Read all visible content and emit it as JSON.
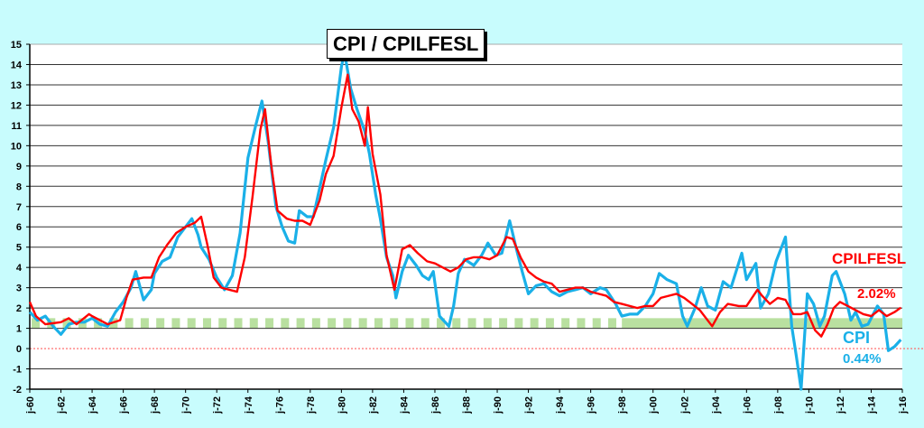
{
  "chart_data": {
    "type": "line",
    "title": "CPI / CPILFESL",
    "xlabel": "",
    "ylabel": "",
    "xlim": [
      1960,
      2016
    ],
    "ylim": [
      -2,
      15
    ],
    "yticks": [
      -2,
      -1,
      0,
      1,
      2,
      3,
      4,
      5,
      6,
      7,
      8,
      9,
      10,
      11,
      12,
      13,
      14,
      15
    ],
    "xtick_labels": [
      "j-60",
      "j-62",
      "j-64",
      "j-66",
      "j-68",
      "j-70",
      "j-72",
      "j-74",
      "j-76",
      "j-78",
      "j-80",
      "j-82",
      "j-84",
      "j-86",
      "j-88",
      "j-90",
      "j-92",
      "j-94",
      "j-96",
      "j-98",
      "j-00",
      "j-02",
      "j-04",
      "j-06",
      "j-08",
      "j-10",
      "j-12",
      "j-14",
      "j-16"
    ],
    "xtick_years": [
      1960,
      1962,
      1964,
      1966,
      1968,
      1970,
      1972,
      1974,
      1976,
      1978,
      1980,
      1982,
      1984,
      1986,
      1988,
      1990,
      1992,
      1994,
      1996,
      1998,
      2000,
      2002,
      2004,
      2006,
      2008,
      2010,
      2012,
      2014,
      2016
    ],
    "grid": true,
    "reference_band": {
      "range": [
        1,
        1.5
      ],
      "color": "#b9e0a0",
      "dashed_until": 1998
    },
    "zero_line_color": "#ff6060",
    "series": [
      {
        "name": "CPI",
        "color": "#1ab0e8",
        "last_value_label": "0.44%",
        "x": [
          1960,
          1960.5,
          1961,
          1961.5,
          1962,
          1962.5,
          1963,
          1963.5,
          1964,
          1964.5,
          1965,
          1965.5,
          1966,
          1966.5,
          1966.8,
          1967.3,
          1967.8,
          1968,
          1968.5,
          1969,
          1969.5,
          1970,
          1970.4,
          1970.8,
          1971,
          1971.5,
          1972,
          1972.5,
          1973,
          1973.5,
          1974,
          1974.5,
          1974.9,
          1975.3,
          1975.8,
          1976.2,
          1976.6,
          1977,
          1977.3,
          1977.8,
          1978.2,
          1978.6,
          1979,
          1979.5,
          1980,
          1980.2,
          1980.6,
          1981,
          1981.5,
          1981.8,
          1982.2,
          1982.5,
          1982.9,
          1983.3,
          1983.5,
          1983.9,
          1984.3,
          1984.8,
          1985.2,
          1985.6,
          1985.9,
          1986.3,
          1986.9,
          1987.2,
          1987.5,
          1987.9,
          1988.5,
          1989,
          1989.4,
          1989.9,
          1990.3,
          1990.8,
          1991.2,
          1991.6,
          1992,
          1992.5,
          1993,
          1993.5,
          1994,
          1994.5,
          1995,
          1995.5,
          1996,
          1996.6,
          1997,
          1997.6,
          1998,
          1998.5,
          1999,
          1999.5,
          2000,
          2000.4,
          2000.9,
          2001.5,
          2001.9,
          2002.2,
          2002.7,
          2003.1,
          2003.5,
          2004,
          2004.5,
          2005,
          2005.7,
          2006,
          2006.6,
          2006.9,
          2007.4,
          2007.9,
          2008.5,
          2008.9,
          2009.2,
          2009.5,
          2009.9,
          2010.3,
          2010.7,
          2011,
          2011.5,
          2011.75,
          2012.3,
          2012.7,
          2013,
          2013.4,
          2013.8,
          2014.4,
          2014.8,
          2015.1,
          2015.5,
          2015.9
        ],
        "y": [
          1.8,
          1.4,
          1.6,
          1.1,
          0.7,
          1.2,
          1.3,
          1.3,
          1.5,
          1.2,
          1.1,
          1.8,
          2.3,
          3.0,
          3.8,
          2.4,
          2.9,
          3.7,
          4.3,
          4.5,
          5.5,
          6.0,
          6.4,
          5.6,
          5.0,
          4.4,
          3.5,
          2.9,
          3.6,
          5.7,
          9.4,
          11.0,
          12.2,
          10.2,
          7.0,
          6.0,
          5.3,
          5.2,
          6.8,
          6.5,
          6.5,
          7.9,
          9.3,
          10.9,
          13.9,
          14.6,
          12.8,
          11.8,
          10.7,
          9.6,
          7.6,
          6.4,
          4.5,
          3.6,
          2.5,
          3.8,
          4.6,
          4.1,
          3.6,
          3.4,
          3.8,
          1.6,
          1.1,
          2.1,
          3.7,
          4.4,
          4.1,
          4.6,
          5.2,
          4.6,
          4.7,
          6.3,
          5.0,
          3.8,
          2.7,
          3.1,
          3.2,
          2.8,
          2.6,
          2.8,
          2.9,
          3.0,
          2.7,
          3.0,
          2.9,
          2.2,
          1.6,
          1.7,
          1.7,
          2.1,
          2.7,
          3.7,
          3.4,
          3.2,
          1.6,
          1.1,
          2.0,
          3.0,
          2.1,
          1.9,
          3.3,
          3.0,
          4.7,
          3.4,
          4.2,
          2.0,
          2.7,
          4.3,
          5.5,
          1.1,
          -0.4,
          -2.0,
          2.7,
          2.2,
          1.1,
          1.6,
          3.6,
          3.8,
          2.7,
          1.4,
          1.8,
          1.1,
          1.2,
          2.1,
          1.7,
          -0.1,
          0.1,
          0.44
        ]
      },
      {
        "name": "CPILFESL",
        "color": "#ff0000",
        "last_value_label": "2.02%",
        "x": [
          1960,
          1960.4,
          1961,
          1962,
          1962.5,
          1963,
          1963.8,
          1964,
          1965,
          1965.8,
          1966.2,
          1966.6,
          1967.3,
          1967.8,
          1968.3,
          1968.8,
          1969.4,
          1970,
          1970.6,
          1971,
          1971.4,
          1971.8,
          1972.3,
          1972.8,
          1973.3,
          1973.8,
          1974.3,
          1974.8,
          1975.1,
          1975.5,
          1975.9,
          1976.5,
          1977,
          1977.5,
          1978,
          1978.6,
          1979,
          1979.5,
          1980,
          1980.4,
          1980.7,
          1981.1,
          1981.5,
          1981.7,
          1982,
          1982.5,
          1982.9,
          1983.4,
          1983.9,
          1984.4,
          1984.9,
          1985.5,
          1986,
          1986.5,
          1987,
          1987.5,
          1988,
          1988.5,
          1989,
          1989.5,
          1990,
          1990.6,
          1991,
          1991.5,
          1992,
          1992.5,
          1993,
          1993.5,
          1994,
          1995,
          1995.5,
          1996,
          1996.5,
          1997,
          1997.5,
          1998,
          1999,
          1999.5,
          2000,
          2000.5,
          2001,
          2001.5,
          2002,
          2002.5,
          2003,
          2003.8,
          2004.3,
          2004.8,
          2005.5,
          2006,
          2006.7,
          2007,
          2007.5,
          2008,
          2008.5,
          2009,
          2009.5,
          2009.9,
          2010.4,
          2010.8,
          2011.2,
          2011.6,
          2012,
          2012.5,
          2013,
          2013.5,
          2014,
          2014.5,
          2015,
          2015.5,
          2015.9
        ],
        "y": [
          2.3,
          1.6,
          1.2,
          1.3,
          1.5,
          1.2,
          1.7,
          1.6,
          1.2,
          1.4,
          2.5,
          3.4,
          3.5,
          3.5,
          4.5,
          5.1,
          5.7,
          6.0,
          6.2,
          6.5,
          5.1,
          3.5,
          3.0,
          2.9,
          2.8,
          4.5,
          7.5,
          10.8,
          11.8,
          9.0,
          6.8,
          6.4,
          6.3,
          6.3,
          6.1,
          7.3,
          8.6,
          9.5,
          11.9,
          13.5,
          11.8,
          11.2,
          10.0,
          11.9,
          9.6,
          7.6,
          4.6,
          2.9,
          4.9,
          5.1,
          4.7,
          4.3,
          4.2,
          4.0,
          3.8,
          4.0,
          4.4,
          4.5,
          4.5,
          4.4,
          4.6,
          5.5,
          5.4,
          4.5,
          3.8,
          3.5,
          3.3,
          3.2,
          2.8,
          3.0,
          3.0,
          2.8,
          2.7,
          2.6,
          2.3,
          2.2,
          2.0,
          2.1,
          2.1,
          2.5,
          2.6,
          2.7,
          2.5,
          2.2,
          1.9,
          1.1,
          1.8,
          2.2,
          2.1,
          2.1,
          2.9,
          2.6,
          2.2,
          2.5,
          2.4,
          1.7,
          1.7,
          1.8,
          0.9,
          0.6,
          1.2,
          2.0,
          2.3,
          2.1,
          1.9,
          1.7,
          1.6,
          1.9,
          1.6,
          1.8,
          2.02
        ]
      }
    ]
  }
}
